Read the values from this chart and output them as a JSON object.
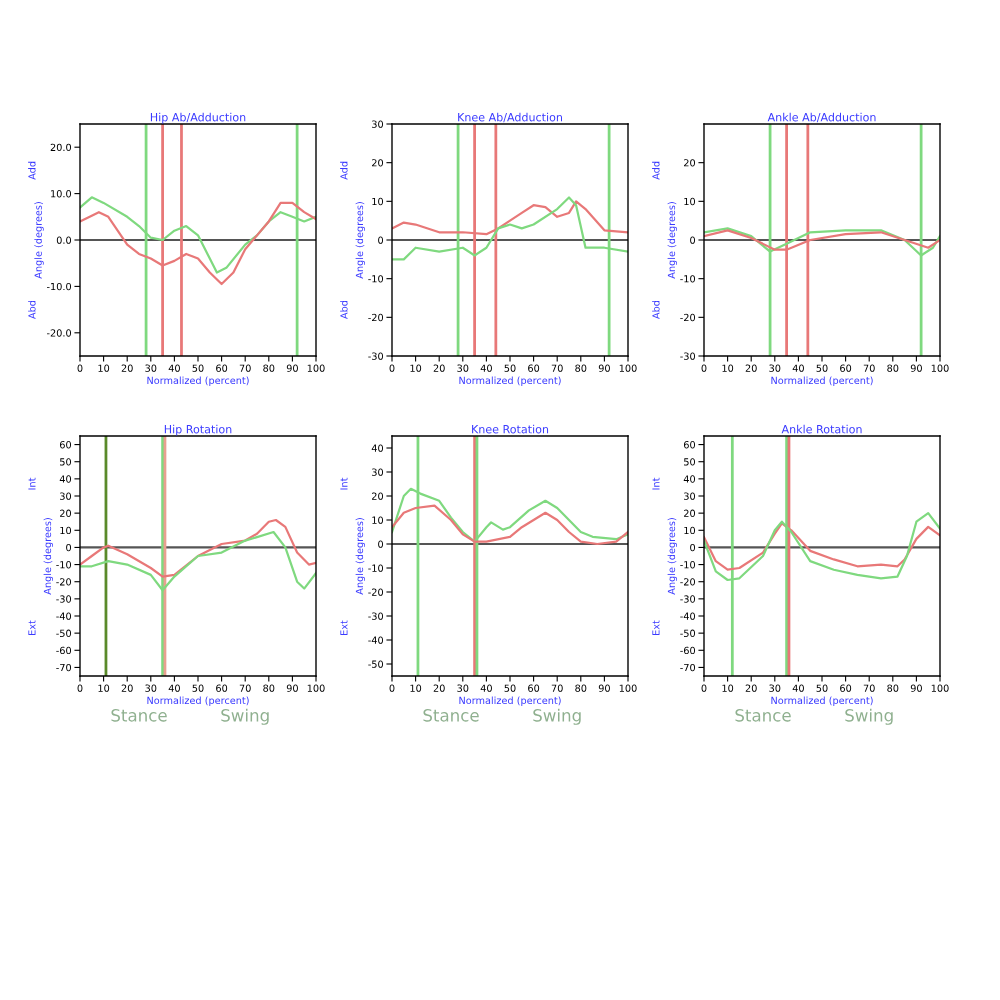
{
  "chart_data": [
    {
      "type": "line",
      "title": "Hip Ab/Adduction",
      "xlabel": "Normalized (percent)",
      "ylabel": "Angle (degrees)",
      "annotations": [
        "Add",
        "Abd"
      ],
      "xlim": [
        0,
        100
      ],
      "xticks": [
        0,
        10,
        20,
        30,
        40,
        50,
        60,
        70,
        80,
        90,
        100
      ],
      "ylim": [
        -25,
        25
      ],
      "yticks": [
        {
          "value": -20,
          "label": "-20.0"
        },
        {
          "value": -10,
          "label": "-10.0"
        },
        {
          "value": 0,
          "label": "0.0"
        },
        {
          "value": 10,
          "label": "10.0"
        },
        {
          "value": 20,
          "label": "20.0"
        }
      ],
      "legend": false,
      "grid": false,
      "series": [
        {
          "color": "#7fd97f",
          "x": [
            0,
            5,
            10,
            20,
            25,
            30,
            35,
            40,
            45,
            50,
            55,
            58,
            62,
            70,
            75,
            80,
            85,
            90,
            95,
            100
          ],
          "values": [
            7,
            9.2,
            8,
            5,
            3,
            0.5,
            0,
            2,
            3,
            1,
            -4,
            -7,
            -6,
            -1,
            1,
            4,
            6,
            5,
            4,
            5
          ]
        },
        {
          "color": "#e87878",
          "x": [
            0,
            8,
            12,
            20,
            25,
            30,
            35,
            40,
            45,
            50,
            55,
            60,
            65,
            70,
            75,
            80,
            85,
            90,
            95,
            100
          ],
          "values": [
            4,
            6,
            5,
            -1,
            -3,
            -4,
            -5.5,
            -4.5,
            -3,
            -4,
            -7,
            -9.5,
            -7,
            -2,
            1,
            4,
            8,
            8,
            6,
            4.5
          ]
        }
      ],
      "ref_lines": [
        {
          "axis": "y",
          "value": 0,
          "color": "#555555"
        },
        {
          "axis": "x",
          "value": 28,
          "color": "#7fd97f"
        },
        {
          "axis": "x",
          "value": 92,
          "color": "#7fd97f"
        },
        {
          "axis": "x",
          "value": 35,
          "color": "#e87878"
        },
        {
          "axis": "x",
          "value": 43,
          "color": "#e87878"
        }
      ]
    },
    {
      "type": "line",
      "title": "Knee Ab/Adduction",
      "xlabel": "Normalized (percent)",
      "ylabel": "Angle (degrees)",
      "annotations": [
        "Add",
        "Abd"
      ],
      "xlim": [
        0,
        100
      ],
      "xticks": [
        0,
        10,
        20,
        30,
        40,
        50,
        60,
        70,
        80,
        90,
        100
      ],
      "ylim": [
        -30,
        30
      ],
      "yticks": [
        -30,
        -20,
        -10,
        0,
        10,
        20,
        30
      ],
      "legend": false,
      "grid": false,
      "series": [
        {
          "color": "#e87878",
          "x": [
            0,
            5,
            10,
            20,
            30,
            40,
            45,
            50,
            55,
            60,
            65,
            70,
            75,
            78,
            82,
            90,
            100
          ],
          "values": [
            3,
            4.5,
            4,
            2,
            2,
            1.5,
            3,
            5,
            7,
            9,
            8.5,
            6,
            7,
            10,
            8,
            2.5,
            2
          ]
        },
        {
          "color": "#7fd97f",
          "x": [
            0,
            5,
            10,
            20,
            30,
            35,
            40,
            45,
            50,
            55,
            60,
            70,
            75,
            78,
            82,
            90,
            100
          ],
          "values": [
            -5,
            -5,
            -2,
            -3,
            -2,
            -4,
            -2,
            3,
            4,
            3,
            4,
            8,
            11,
            9,
            -2,
            -2,
            -3
          ]
        }
      ],
      "ref_lines": [
        {
          "axis": "y",
          "value": 0,
          "color": "#555555"
        },
        {
          "axis": "x",
          "value": 28,
          "color": "#7fd97f"
        },
        {
          "axis": "x",
          "value": 92,
          "color": "#7fd97f"
        },
        {
          "axis": "x",
          "value": 35,
          "color": "#e87878"
        },
        {
          "axis": "x",
          "value": 44,
          "color": "#e87878"
        }
      ]
    },
    {
      "type": "line",
      "title": "Ankle Ab/Adduction",
      "xlabel": "Normalized (percent)",
      "ylabel": "Angle (degrees)",
      "annotations": [
        "Add",
        "Abd"
      ],
      "xlim": [
        0,
        100
      ],
      "xticks": [
        0,
        10,
        20,
        30,
        40,
        50,
        60,
        70,
        80,
        90,
        100
      ],
      "ylim": [
        -30,
        30
      ],
      "yticks": [
        -30,
        -20,
        -10,
        0,
        10,
        20
      ],
      "legend": false,
      "grid": false,
      "series": [
        {
          "color": "#7fd97f",
          "x": [
            0,
            10,
            20,
            28,
            35,
            45,
            60,
            75,
            85,
            92,
            97,
            100
          ],
          "values": [
            2,
            3,
            1,
            -3,
            -1,
            2,
            2.5,
            2.5,
            0,
            -4,
            -2,
            1
          ]
        },
        {
          "color": "#e87878",
          "x": [
            0,
            10,
            20,
            30,
            35,
            45,
            60,
            75,
            85,
            95,
            100
          ],
          "values": [
            1,
            2.5,
            0.5,
            -2.5,
            -2.5,
            0,
            1.5,
            2,
            0,
            -2,
            0
          ]
        }
      ],
      "ref_lines": [
        {
          "axis": "y",
          "value": 0,
          "color": "#555555"
        },
        {
          "axis": "x",
          "value": 28,
          "color": "#7fd97f"
        },
        {
          "axis": "x",
          "value": 92,
          "color": "#7fd97f"
        },
        {
          "axis": "x",
          "value": 35,
          "color": "#e87878"
        },
        {
          "axis": "x",
          "value": 44,
          "color": "#e87878"
        }
      ]
    },
    {
      "type": "line",
      "title": "Hip Rotation",
      "xlabel": "Normalized (percent)",
      "ylabel": "Angle (degrees)",
      "annotations": [
        "Int",
        "Ext",
        "Stance",
        "Swing"
      ],
      "xlim": [
        0,
        100
      ],
      "xticks": [
        0,
        10,
        20,
        30,
        40,
        50,
        60,
        70,
        80,
        90,
        100
      ],
      "ylim": [
        -75,
        65
      ],
      "yticks": [
        -70,
        -60,
        -50,
        -40,
        -30,
        -20,
        -10,
        0,
        10,
        20,
        30,
        40,
        50,
        60
      ],
      "legend": false,
      "grid": false,
      "series": [
        {
          "color": "#e87878",
          "x": [
            0,
            5,
            10,
            12,
            20,
            30,
            35,
            40,
            50,
            60,
            70,
            75,
            80,
            83,
            87,
            92,
            97,
            100
          ],
          "values": [
            -10,
            -5,
            0,
            1,
            -4,
            -12,
            -17,
            -16,
            -5,
            2,
            4,
            8,
            15,
            16,
            12,
            -3,
            -10,
            -9
          ]
        },
        {
          "color": "#7fd97f",
          "x": [
            0,
            5,
            12,
            20,
            30,
            35,
            40,
            50,
            60,
            70,
            75,
            82,
            87,
            92,
            95,
            100
          ],
          "values": [
            -11,
            -11,
            -8,
            -10,
            -16,
            -25,
            -17,
            -5,
            -3,
            4,
            6,
            9,
            0,
            -20,
            -24,
            -15
          ]
        }
      ],
      "ref_lines": [
        {
          "axis": "y",
          "value": 0,
          "color": "#555555"
        },
        {
          "axis": "x",
          "value": 11,
          "color": "#5a8a2a"
        },
        {
          "axis": "x",
          "value": 35,
          "color": "#7fd97f"
        },
        {
          "axis": "x",
          "value": 36,
          "color": "#e8a090"
        }
      ]
    },
    {
      "type": "line",
      "title": "Knee Rotation",
      "xlabel": "Normalized (percent)",
      "ylabel": "Angle (degrees)",
      "annotations": [
        "Int",
        "Ext",
        "Stance",
        "Swing"
      ],
      "xlim": [
        0,
        100
      ],
      "xticks": [
        0,
        10,
        20,
        30,
        40,
        50,
        60,
        70,
        80,
        90,
        100
      ],
      "ylim": [
        -55,
        45
      ],
      "yticks": [
        -50,
        -40,
        -30,
        -20,
        -10,
        0,
        10,
        20,
        30,
        40
      ],
      "legend": false,
      "grid": false,
      "series": [
        {
          "color": "#7fd97f",
          "x": [
            0,
            5,
            8,
            12,
            20,
            25,
            30,
            35,
            40,
            42,
            47,
            50,
            58,
            65,
            70,
            80,
            85,
            95,
            100
          ],
          "values": [
            5,
            20,
            23,
            21,
            18,
            11,
            5,
            1,
            7,
            9,
            6,
            7,
            14,
            18,
            15,
            5,
            3,
            2,
            4
          ]
        },
        {
          "color": "#e87878",
          "x": [
            0,
            5,
            10,
            18,
            25,
            30,
            35,
            40,
            50,
            55,
            65,
            70,
            75,
            80,
            87,
            95,
            100
          ],
          "values": [
            7,
            13,
            15,
            16,
            10,
            4,
            1,
            1,
            3,
            7,
            13,
            10,
            5,
            1,
            0,
            1,
            5
          ]
        }
      ],
      "ref_lines": [
        {
          "axis": "y",
          "value": 0,
          "color": "#555555"
        },
        {
          "axis": "x",
          "value": 11,
          "color": "#7fd97f"
        },
        {
          "axis": "x",
          "value": 35,
          "color": "#e87878"
        },
        {
          "axis": "x",
          "value": 36,
          "color": "#7fd97f"
        }
      ]
    },
    {
      "type": "line",
      "title": "Ankle Rotation",
      "xlabel": "Normalized (percent)",
      "ylabel": "Angle (degrees)",
      "annotations": [
        "Int",
        "Ext",
        "Stance",
        "Swing"
      ],
      "xlim": [
        0,
        100
      ],
      "xticks": [
        0,
        10,
        20,
        30,
        40,
        50,
        60,
        70,
        80,
        90,
        100
      ],
      "ylim": [
        -75,
        65
      ],
      "yticks": [
        -70,
        -60,
        -50,
        -40,
        -30,
        -20,
        -10,
        0,
        10,
        20,
        30,
        40,
        50,
        60
      ],
      "legend": false,
      "grid": false,
      "series": [
        {
          "color": "#e87878",
          "x": [
            0,
            5,
            10,
            15,
            25,
            30,
            33,
            37,
            45,
            55,
            65,
            75,
            82,
            85,
            90,
            95,
            100
          ],
          "values": [
            6,
            -8,
            -13,
            -12,
            -3,
            8,
            14,
            10,
            -2,
            -7,
            -11,
            -10,
            -11,
            -7,
            5,
            12,
            7
          ]
        },
        {
          "color": "#7fd97f",
          "x": [
            0,
            5,
            10,
            15,
            25,
            30,
            33,
            37,
            45,
            55,
            65,
            75,
            82,
            86,
            90,
            95,
            100
          ],
          "values": [
            4,
            -14,
            -19,
            -18,
            -5,
            10,
            15,
            9,
            -8,
            -13,
            -16,
            -18,
            -17,
            -5,
            15,
            20,
            11
          ]
        }
      ],
      "ref_lines": [
        {
          "axis": "y",
          "value": 0,
          "color": "#555555"
        },
        {
          "axis": "x",
          "value": 12,
          "color": "#7fd97f"
        },
        {
          "axis": "x",
          "value": 35,
          "color": "#7fd97f"
        },
        {
          "axis": "x",
          "value": 36,
          "color": "#e87878"
        }
      ]
    }
  ]
}
